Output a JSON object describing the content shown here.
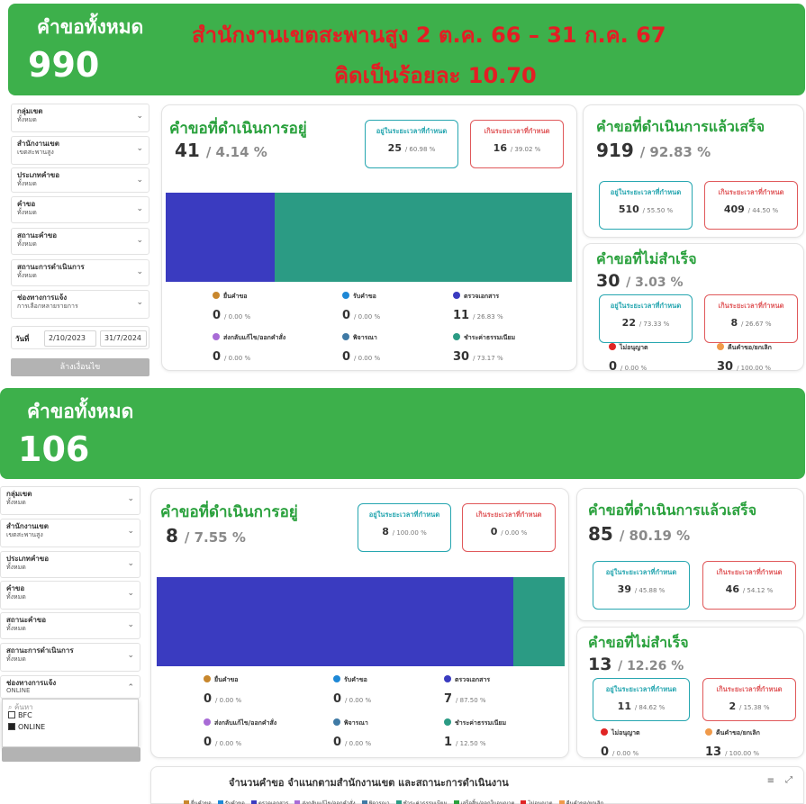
{
  "colors": {
    "banner_green": "#3db04b",
    "title_green": "#2aa13d",
    "office_red": "#e31e24",
    "teal": "#26a6b0",
    "red": "#e0585a",
    "bar_blue": "#3a3bc0",
    "bar_teal": "#2b9b84"
  },
  "top": {
    "banner": {
      "label": "คำขอทั้งหมด",
      "count": "990",
      "office_line": "สำนักงานเขตสะพานสูง 2 ต.ค. 66 – 31 ก.ค. 67",
      "percent_line": "คิดเป็นร้อยละ 10.70"
    },
    "filters": [
      {
        "label": "กลุ่มเขต",
        "value": "ทั้งหมด"
      },
      {
        "label": "สำนักงานเขต",
        "value": "เขตสะพานสูง"
      },
      {
        "label": "ประเภทคำขอ",
        "value": "ทั้งหมด"
      },
      {
        "label": "คำขอ",
        "value": "ทั้งหมด"
      },
      {
        "label": "สถานะคำขอ",
        "value": "ทั้งหมด"
      },
      {
        "label": "สถานะการดำเนินการ",
        "value": "ทั้งหมด"
      },
      {
        "label": "ช่องทางการแจ้ง",
        "value": "การเลือกหลายรายการ"
      }
    ],
    "date_label": "วันที่",
    "date_from": "2/10/2023",
    "date_to": "31/7/2024",
    "clear_button": "ล้างเงื่อนไข",
    "in_progress": {
      "title": "คำขอที่ดำเนินการอยู่",
      "count": "41",
      "pct": "/ 4.14 %",
      "pill_in": {
        "label": "อยู่ในระยะเวลาที่กำหนด",
        "value": "25",
        "pct": "/ 60.98 %"
      },
      "pill_over": {
        "label": "เกินระยะเวลาที่กำหนด",
        "value": "16",
        "pct": "/ 39.02 %"
      },
      "bar_fraction_blue": 0.2683,
      "stats": [
        {
          "label": "ยื่นคำขอ",
          "color": "#c8872d",
          "value": "0",
          "pct": "/ 0.00 %"
        },
        {
          "label": "รับคำขอ",
          "color": "#1e88d6",
          "value": "0",
          "pct": "/ 0.00 %"
        },
        {
          "label": "ตรวจเอกสาร",
          "color": "#3a3bc0",
          "value": "11",
          "pct": "/ 26.83 %"
        },
        {
          "label": "ส่งกลับแก้ไข/ออกคำสั่ง",
          "color": "#a86bd6",
          "value": "0",
          "pct": "/ 0.00 %"
        },
        {
          "label": "พิจารณา",
          "color": "#3f7aa5",
          "value": "0",
          "pct": "/ 0.00 %"
        },
        {
          "label": "ชำระค่าธรรมเนียม",
          "color": "#2b9b84",
          "value": "30",
          "pct": "/ 73.17 %"
        }
      ]
    },
    "completed": {
      "title": "คำขอที่ดำเนินการแล้วเสร็จ",
      "count": "919",
      "pct": "/ 92.83 %",
      "pill_in": {
        "label": "อยู่ในระยะเวลาที่กำหนด",
        "value": "510",
        "pct": "/ 55.50 %"
      },
      "pill_over": {
        "label": "เกินระยะเวลาที่กำหนด",
        "value": "409",
        "pct": "/ 44.50 %"
      }
    },
    "failed": {
      "title": "คำขอที่ไม่สำเร็จ",
      "count": "30",
      "pct": "/ 3.03 %",
      "pill_in": {
        "label": "อยู่ในระยะเวลาที่กำหนด",
        "value": "22",
        "pct": "/ 73.33 %"
      },
      "pill_over": {
        "label": "เกินระยะเวลาที่กำหนด",
        "value": "8",
        "pct": "/ 26.67 %"
      },
      "stats": [
        {
          "label": "ไม่อนุญาต",
          "color": "#e02424",
          "value": "0",
          "pct": "/ 0.00 %"
        },
        {
          "label": "คืนคำขอ/ยกเลิก",
          "color": "#f09a4a",
          "value": "30",
          "pct": "/ 100.00 %"
        }
      ]
    }
  },
  "bottom": {
    "banner": {
      "label": "คำขอทั้งหมด",
      "count": "106"
    },
    "filters": [
      {
        "label": "กลุ่มเขต",
        "value": "ทั้งหมด"
      },
      {
        "label": "สำนักงานเขต",
        "value": "เขตสะพานสูง"
      },
      {
        "label": "ประเภทคำขอ",
        "value": "ทั้งหมด"
      },
      {
        "label": "คำขอ",
        "value": "ทั้งหมด"
      },
      {
        "label": "สถานะคำขอ",
        "value": "ทั้งหมด"
      },
      {
        "label": "สถานะการดำเนินการ",
        "value": "ทั้งหมด"
      },
      {
        "label": "ช่องทางการแจ้ง",
        "value": "ONLINE"
      }
    ],
    "dropdown": {
      "search_placeholder": "ค้นหา",
      "options": [
        {
          "label": "BFC",
          "checked": false
        },
        {
          "label": "ONLINE",
          "checked": true
        }
      ]
    },
    "in_progress": {
      "title": "คำขอที่ดำเนินการอยู่",
      "count": "8",
      "pct": "/ 7.55 %",
      "pill_in": {
        "label": "อยู่ในระยะเวลาที่กำหนด",
        "value": "8",
        "pct": "/ 100.00 %"
      },
      "pill_over": {
        "label": "เกินระยะเวลาที่กำหนด",
        "value": "0",
        "pct": "/ 0.00 %"
      },
      "bar_fraction_blue": 0.875,
      "stats": [
        {
          "label": "ยื่นคำขอ",
          "color": "#c8872d",
          "value": "0",
          "pct": "/ 0.00 %"
        },
        {
          "label": "รับคำขอ",
          "color": "#1e88d6",
          "value": "0",
          "pct": "/ 0.00 %"
        },
        {
          "label": "ตรวจเอกสาร",
          "color": "#3a3bc0",
          "value": "7",
          "pct": "/ 87.50 %"
        },
        {
          "label": "ส่งกลับแก้ไข/ออกคำสั่ง",
          "color": "#a86bd6",
          "value": "0",
          "pct": "/ 0.00 %"
        },
        {
          "label": "พิจารณา",
          "color": "#3f7aa5",
          "value": "0",
          "pct": "/ 0.00 %"
        },
        {
          "label": "ชำระค่าธรรมเนียม",
          "color": "#2b9b84",
          "value": "1",
          "pct": "/ 12.50 %"
        }
      ]
    },
    "completed": {
      "title": "คำขอที่ดำเนินการแล้วเสร็จ",
      "count": "85",
      "pct": "/ 80.19 %",
      "pill_in": {
        "label": "อยู่ในระยะเวลาที่กำหนด",
        "value": "39",
        "pct": "/ 45.88 %"
      },
      "pill_over": {
        "label": "เกินระยะเวลาที่กำหนด",
        "value": "46",
        "pct": "/ 54.12 %"
      }
    },
    "failed": {
      "title": "คำขอที่ไม่สำเร็จ",
      "count": "13",
      "pct": "/ 12.26 %",
      "pill_in": {
        "label": "อยู่ในระยะเวลาที่กำหนด",
        "value": "11",
        "pct": "/ 84.62 %"
      },
      "pill_over": {
        "label": "เกินระยะเวลาที่กำหนด",
        "value": "2",
        "pct": "/ 15.38 %"
      },
      "stats": [
        {
          "label": "ไม่อนุญาต",
          "color": "#e02424",
          "value": "0",
          "pct": "/ 0.00 %"
        },
        {
          "label": "คืนคำขอ/ยกเลิก",
          "color": "#f09a4a",
          "value": "13",
          "pct": "/ 100.00 %"
        }
      ]
    },
    "bottom_chart": {
      "title": "จำนวนคำขอ  จำแนกตามสำนักงานเขต และสถานะการดำเนินงาน",
      "legend": [
        {
          "label": "ยื่นคำขอ",
          "color": "#c8872d"
        },
        {
          "label": "รับคำขอ",
          "color": "#1e88d6"
        },
        {
          "label": "ตรวจเอกสาร",
          "color": "#3a3bc0"
        },
        {
          "label": "ส่งกลับแก้ไข/ออกคำสั่ง",
          "color": "#a86bd6"
        },
        {
          "label": "พิจารณา",
          "color": "#3f7aa5"
        },
        {
          "label": "ชำระค่าธรรมเนียม",
          "color": "#2b9b84"
        },
        {
          "label": "เสร็จสิ้น/ออกใบอนุญาต",
          "color": "#2aa13d"
        },
        {
          "label": "ไม่อนุญาต",
          "color": "#e02424"
        },
        {
          "label": "คืนคำขอ/ยกเลิก",
          "color": "#f09a4a"
        }
      ]
    }
  }
}
